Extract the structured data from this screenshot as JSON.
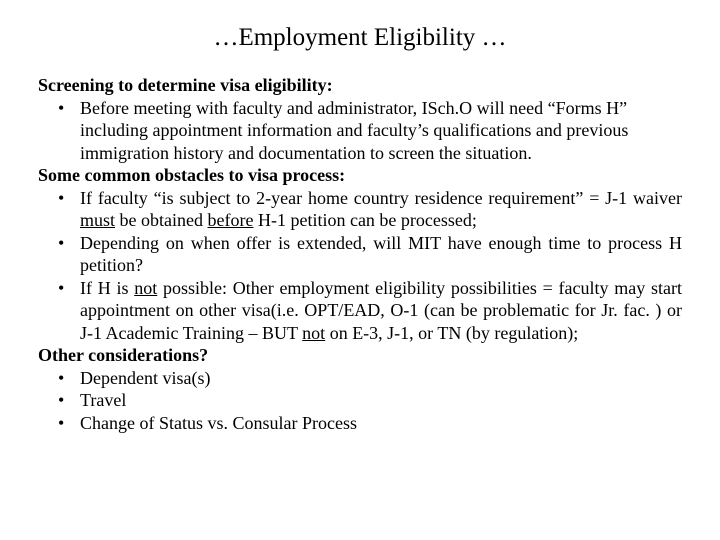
{
  "title": "…Employment Eligibility …",
  "section1": {
    "heading": "Screening to determine visa eligibility:",
    "bullet1": "Before meeting with faculty and administrator, ISch.O will need “Forms H” including appointment information and faculty’s qualifications and previous immigration history and documentation to screen the situation."
  },
  "section2": {
    "heading": "Some common obstacles to visa process:",
    "b1_a": "If faculty “is subject to 2-year home country residence requirement” = J-1 waiver ",
    "b1_must": "must",
    "b1_b": " be obtained ",
    "b1_before": "before",
    "b1_c": " H-1 petition can be processed;",
    "b2": "Depending on when offer is extended, will MIT have enough time to process H petition?",
    "b3_a": "If H is ",
    "b3_not1": "not",
    "b3_b": " possible:  Other employment eligibility possibilities = faculty may start appointment on other visa(i.e. OPT/EAD, O-1 (can be problematic for Jr. fac. ) or J-1 Academic Training – BUT ",
    "b3_not2": "not",
    "b3_c": " on E-3, J-1, or TN (by regulation);"
  },
  "section3": {
    "heading": "Other considerations?",
    "b1": "Dependent visa(s)",
    "b2": "Travel",
    "b3": "Change of Status vs. Consular Process"
  }
}
